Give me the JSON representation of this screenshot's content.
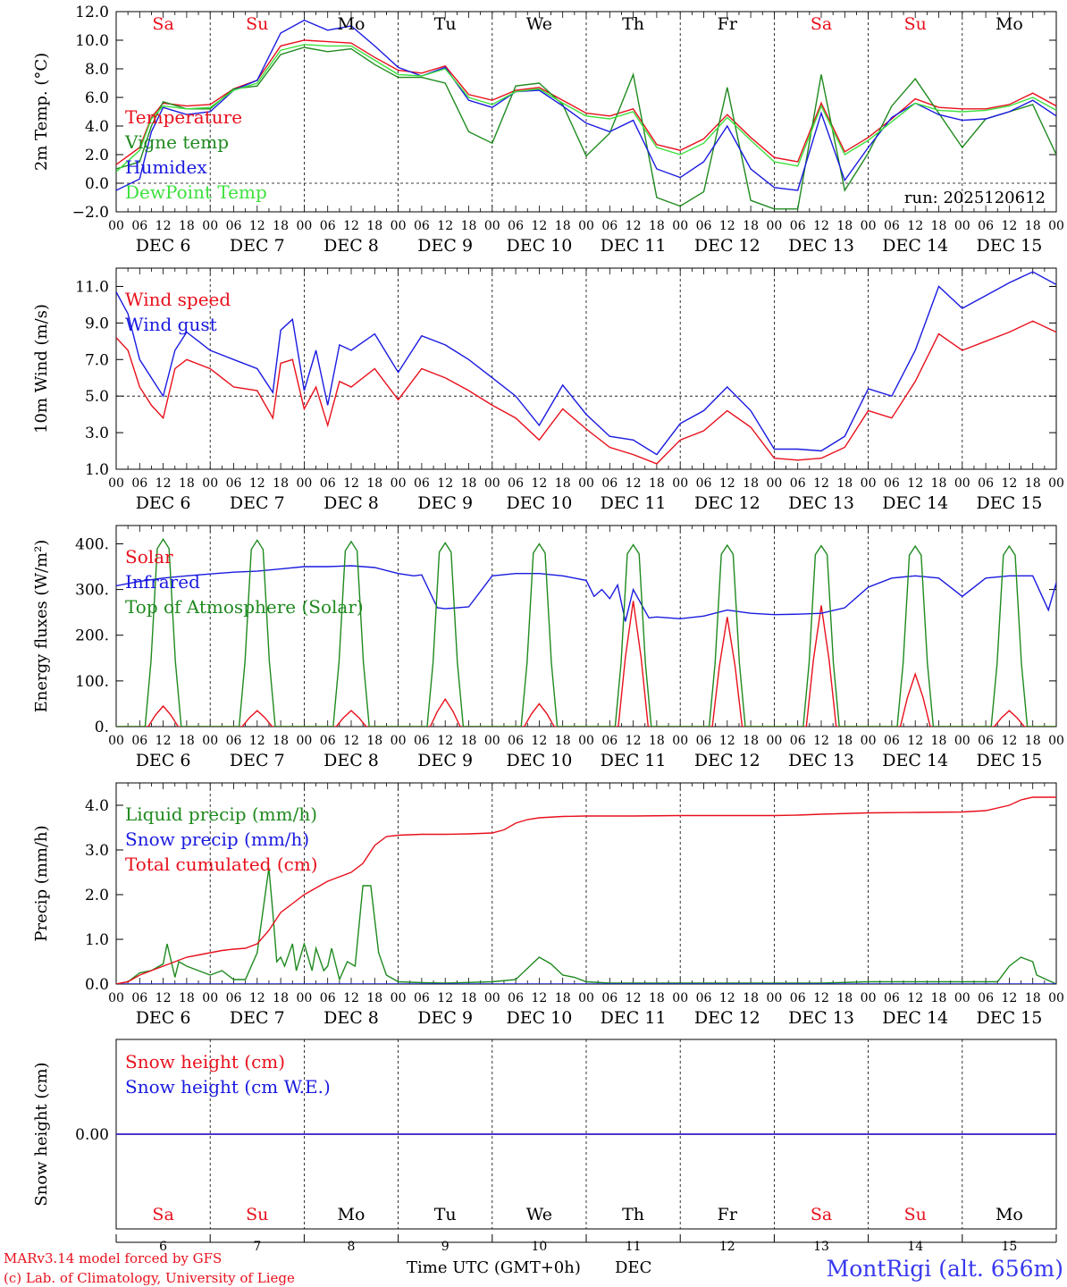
{
  "footer": {
    "credit1": "MARv3.14 model forced by GFS",
    "credit2": "(c) Lab. of Climatology, University of Liege",
    "xlabel": "Time UTC (GMT+0h)",
    "month": "DEC",
    "station": "MontRigi (alt. 656m)"
  },
  "colors": {
    "red": "#e8101c",
    "blue": "#1a1ae0",
    "green": "#1f8a1f",
    "lightgreen": "#3de03d",
    "weekend": "#e8101c",
    "weekday": "#000000"
  },
  "days": {
    "labels": [
      "Sa",
      "Su",
      "Mo",
      "Tu",
      "We",
      "Th",
      "Fr",
      "Sa",
      "Su",
      "Mo"
    ],
    "weekend": [
      true,
      true,
      false,
      false,
      false,
      false,
      false,
      true,
      true,
      false
    ],
    "dates": [
      "DEC  6",
      "DEC  7",
      "DEC  8",
      "DEC  9",
      "DEC 10",
      "DEC 11",
      "DEC 12",
      "DEC 13",
      "DEC 14",
      "DEC 15"
    ],
    "nums": [
      "6",
      "7",
      "8",
      "9",
      "10",
      "11",
      "12",
      "13",
      "14",
      "15"
    ],
    "hour_ticks": [
      "00",
      "06",
      "12",
      "18"
    ]
  },
  "chart_data": [
    {
      "type": "line",
      "panel": "temperature",
      "ylabel": "2m Temp. (°C)",
      "ylim": [
        -2,
        12
      ],
      "yticks": [
        "−2.0",
        "0.0",
        "2.0",
        "4.0",
        "6.0",
        "8.0",
        "10.0",
        "12.0"
      ],
      "refline": 0,
      "annotation": "run: 2025120612",
      "x_unit": "hours since 2025-12-06 00 UTC",
      "series": [
        {
          "name": "Temperature",
          "color": "red",
          "x": [
            0,
            6,
            9,
            12,
            18,
            24,
            30,
            36,
            42,
            48,
            54,
            60,
            66,
            72,
            78,
            84,
            90,
            96,
            102,
            108,
            114,
            120,
            126,
            132,
            138,
            144,
            150,
            156,
            162,
            168,
            174,
            180,
            186,
            192,
            198,
            204,
            210,
            216,
            222,
            228,
            234,
            240
          ],
          "values": [
            1.3,
            2.5,
            4.6,
            5.6,
            5.4,
            5.5,
            6.6,
            7.2,
            9.6,
            10.0,
            9.9,
            9.8,
            8.8,
            7.9,
            7.7,
            8.2,
            6.2,
            5.8,
            6.5,
            6.7,
            5.8,
            4.9,
            4.7,
            5.2,
            2.7,
            2.3,
            3.1,
            4.8,
            3.2,
            1.8,
            1.5,
            5.6,
            2.2,
            3.2,
            4.5,
            5.9,
            5.3,
            5.2,
            5.2,
            5.5,
            6.3,
            5.4
          ]
        },
        {
          "name": "Vigne temp",
          "color": "green",
          "x": [
            0,
            6,
            9,
            12,
            18,
            24,
            30,
            36,
            42,
            48,
            54,
            60,
            66,
            72,
            78,
            84,
            90,
            96,
            102,
            108,
            114,
            120,
            126,
            132,
            138,
            144,
            150,
            156,
            162,
            168,
            174,
            180,
            186,
            192,
            198,
            204,
            210,
            216,
            222,
            228,
            234,
            240
          ],
          "values": [
            1.0,
            1.5,
            4.0,
            5.7,
            5.2,
            5.2,
            6.6,
            6.8,
            9.0,
            9.5,
            9.2,
            9.4,
            8.3,
            7.4,
            7.4,
            7.0,
            3.6,
            2.8,
            6.8,
            7.0,
            5.5,
            1.9,
            3.5,
            7.6,
            -1.0,
            -1.6,
            -0.6,
            6.7,
            -1.2,
            -1.8,
            -1.8,
            7.6,
            -0.5,
            2.1,
            5.4,
            7.3,
            4.9,
            2.5,
            4.5,
            5.0,
            5.5,
            2.0
          ]
        },
        {
          "name": "Humidex",
          "color": "blue",
          "x": [
            0,
            6,
            9,
            12,
            18,
            24,
            30,
            36,
            42,
            48,
            54,
            60,
            66,
            72,
            78,
            84,
            90,
            96,
            102,
            108,
            114,
            120,
            126,
            132,
            138,
            144,
            150,
            156,
            162,
            168,
            174,
            180,
            186,
            192,
            198,
            204,
            210,
            216,
            222,
            228,
            234,
            240
          ],
          "values": [
            -0.5,
            0.3,
            3.6,
            5.3,
            4.8,
            5.0,
            6.5,
            7.2,
            10.5,
            11.4,
            10.7,
            11.0,
            9.6,
            8.1,
            7.5,
            8.1,
            5.8,
            5.3,
            6.4,
            6.5,
            5.4,
            4.2,
            3.6,
            4.4,
            1.0,
            0.4,
            1.5,
            4.0,
            1.0,
            -0.3,
            -0.5,
            4.9,
            0.2,
            2.5,
            4.6,
            5.6,
            4.8,
            4.4,
            4.5,
            5.0,
            5.8,
            4.7
          ]
        },
        {
          "name": "DewPoint Temp",
          "color": "lightgreen",
          "x": [
            0,
            6,
            9,
            12,
            18,
            24,
            30,
            36,
            42,
            48,
            54,
            60,
            66,
            72,
            78,
            84,
            90,
            96,
            102,
            108,
            114,
            120,
            126,
            132,
            138,
            144,
            150,
            156,
            162,
            168,
            174,
            180,
            186,
            192,
            198,
            204,
            210,
            216,
            222,
            228,
            234,
            240
          ],
          "values": [
            0.8,
            2.3,
            4.5,
            5.4,
            5.2,
            5.3,
            6.5,
            7.0,
            9.3,
            9.7,
            9.6,
            9.6,
            8.6,
            7.6,
            7.5,
            8.0,
            6.0,
            5.5,
            6.4,
            6.6,
            5.6,
            4.7,
            4.5,
            5.0,
            2.5,
            2.0,
            2.8,
            4.6,
            3.0,
            1.5,
            1.2,
            5.4,
            2.0,
            3.0,
            4.3,
            5.6,
            5.1,
            5.0,
            5.1,
            5.4,
            6.0,
            5.1
          ]
        }
      ]
    },
    {
      "type": "line",
      "panel": "wind",
      "ylabel": "10m Wind (m/s)",
      "ylim": [
        1,
        12
      ],
      "yticks": [
        "1.0",
        "3.0",
        "5.0",
        "7.0",
        "9.0",
        "11.0"
      ],
      "refline": 5,
      "series": [
        {
          "name": "Wind speed",
          "color": "red",
          "x": [
            0,
            3,
            6,
            9,
            12,
            15,
            18,
            24,
            30,
            36,
            40,
            42,
            45,
            48,
            51,
            54,
            57,
            60,
            66,
            72,
            78,
            84,
            90,
            96,
            102,
            108,
            114,
            120,
            126,
            132,
            138,
            144,
            150,
            156,
            162,
            168,
            174,
            180,
            186,
            192,
            198,
            204,
            210,
            216,
            222,
            228,
            234,
            240
          ],
          "values": [
            8.2,
            7.5,
            5.5,
            4.5,
            3.8,
            6.5,
            7.0,
            6.5,
            5.5,
            5.3,
            3.8,
            6.8,
            7.0,
            4.3,
            5.5,
            3.4,
            5.8,
            5.5,
            6.5,
            4.8,
            6.5,
            6.0,
            5.3,
            4.5,
            3.8,
            2.6,
            4.3,
            3.2,
            2.2,
            1.8,
            1.3,
            2.6,
            3.1,
            4.2,
            3.3,
            1.6,
            1.5,
            1.6,
            2.2,
            4.2,
            3.8,
            5.8,
            8.4,
            7.5,
            8.0,
            8.5,
            9.1,
            8.5
          ]
        },
        {
          "name": "Wind gust",
          "color": "blue",
          "x": [
            0,
            3,
            6,
            9,
            12,
            15,
            18,
            24,
            30,
            36,
            40,
            42,
            45,
            48,
            51,
            54,
            57,
            60,
            66,
            72,
            78,
            84,
            90,
            96,
            102,
            108,
            114,
            120,
            126,
            132,
            138,
            144,
            150,
            156,
            162,
            168,
            174,
            180,
            186,
            192,
            198,
            204,
            210,
            216,
            222,
            228,
            234,
            240
          ],
          "values": [
            10.7,
            9.5,
            7.0,
            6.0,
            5.0,
            7.5,
            8.5,
            7.5,
            7.0,
            6.5,
            5.2,
            8.6,
            9.2,
            5.3,
            7.5,
            4.5,
            7.8,
            7.5,
            8.4,
            6.3,
            8.3,
            7.8,
            7.0,
            6.0,
            5.0,
            3.4,
            5.6,
            4.0,
            2.8,
            2.6,
            1.8,
            3.5,
            4.2,
            5.5,
            4.2,
            2.1,
            2.1,
            2.0,
            2.8,
            5.4,
            5.0,
            7.5,
            11.0,
            9.8,
            10.5,
            11.2,
            11.8,
            11.1
          ]
        }
      ]
    },
    {
      "type": "line",
      "panel": "energy",
      "ylabel": "Energy fluxes (W/m²)",
      "ylim": [
        0,
        440
      ],
      "yticks": [
        "0.",
        "100.",
        "200.",
        "300.",
        "400."
      ],
      "series": [
        {
          "name": "Solar",
          "color": "red",
          "peaks_hour_offset": 12,
          "peak_values": [
            45,
            35,
            35,
            60,
            50,
            275,
            240,
            265,
            115,
            35
          ]
        },
        {
          "name": "Infrared",
          "color": "blue",
          "x": [
            0,
            6,
            12,
            18,
            24,
            30,
            36,
            42,
            48,
            54,
            60,
            66,
            72,
            76,
            78,
            82,
            84,
            90,
            96,
            102,
            108,
            114,
            120,
            122,
            124,
            126,
            128,
            130,
            132,
            136,
            138,
            144,
            150,
            156,
            162,
            168,
            174,
            180,
            186,
            192,
            198,
            204,
            210,
            216,
            222,
            228,
            234,
            238,
            240
          ],
          "values": [
            308,
            318,
            325,
            330,
            334,
            338,
            340,
            345,
            350,
            350,
            352,
            348,
            335,
            330,
            332,
            260,
            258,
            262,
            330,
            335,
            335,
            330,
            320,
            285,
            300,
            280,
            310,
            230,
            300,
            238,
            240,
            236,
            242,
            255,
            248,
            245,
            246,
            248,
            260,
            305,
            325,
            330,
            325,
            285,
            325,
            330,
            330,
            255,
            315
          ]
        },
        {
          "name": "Top of Atmosphere (Solar)",
          "color": "green",
          "peaks_hour_offset": 12,
          "peak_values": [
            410,
            408,
            405,
            402,
            400,
            398,
            397,
            396,
            395,
            395
          ]
        }
      ]
    },
    {
      "type": "line",
      "panel": "precip",
      "ylabel": "Precip (mm/h)",
      "ylim": [
        0,
        4.5
      ],
      "yticks": [
        "0.0",
        "1.0",
        "2.0",
        "3.0",
        "4.0"
      ],
      "series": [
        {
          "name": "Liquid precip (mm/h)",
          "color": "green",
          "x": [
            0,
            3,
            6,
            9,
            12,
            13,
            15,
            16,
            18,
            21,
            24,
            27,
            30,
            33,
            36,
            39,
            40,
            41,
            42,
            43,
            45,
            46,
            48,
            49,
            50,
            51,
            53,
            54,
            55,
            57,
            59,
            61,
            63,
            65,
            67,
            69,
            72,
            78,
            84,
            96,
            102,
            108,
            111,
            114,
            117,
            120,
            126,
            180,
            192,
            204,
            225,
            228,
            231,
            234,
            235,
            240
          ],
          "values": [
            0,
            0.05,
            0.25,
            0.3,
            0.45,
            0.9,
            0.15,
            0.5,
            0.4,
            0.3,
            0.2,
            0.3,
            0.1,
            0.1,
            0.7,
            2.6,
            1.6,
            0.5,
            0.6,
            0.4,
            0.9,
            0.3,
            0.9,
            0.6,
            0.3,
            0.8,
            0.3,
            0.4,
            0.8,
            0.1,
            0.5,
            0.4,
            2.2,
            2.2,
            0.7,
            0.2,
            0.05,
            0.03,
            0.02,
            0.05,
            0.1,
            0.6,
            0.45,
            0.2,
            0.15,
            0.05,
            0.02,
            0.02,
            0.05,
            0.05,
            0.05,
            0.4,
            0.6,
            0.5,
            0.2,
            0
          ]
        },
        {
          "name": "Snow precip (mm/h)",
          "color": "blue",
          "x": [
            0,
            240
          ],
          "values": [
            0,
            0
          ]
        },
        {
          "name": "Total cumulated (cm)",
          "color": "red",
          "x": [
            0,
            3,
            6,
            9,
            12,
            15,
            18,
            21,
            24,
            27,
            30,
            33,
            36,
            39,
            42,
            45,
            48,
            51,
            54,
            57,
            60,
            63,
            66,
            69,
            72,
            78,
            84,
            90,
            96,
            99,
            102,
            105,
            108,
            114,
            120,
            126,
            132,
            144,
            156,
            168,
            174,
            180,
            192,
            204,
            216,
            222,
            228,
            231,
            234,
            240
          ],
          "values": [
            0,
            0.05,
            0.2,
            0.3,
            0.4,
            0.5,
            0.6,
            0.65,
            0.7,
            0.75,
            0.78,
            0.8,
            0.9,
            1.2,
            1.6,
            1.8,
            2.0,
            2.15,
            2.3,
            2.4,
            2.5,
            2.7,
            3.1,
            3.3,
            3.33,
            3.35,
            3.35,
            3.36,
            3.38,
            3.45,
            3.6,
            3.68,
            3.72,
            3.75,
            3.76,
            3.76,
            3.76,
            3.77,
            3.77,
            3.77,
            3.78,
            3.8,
            3.83,
            3.84,
            3.85,
            3.88,
            4.0,
            4.12,
            4.18,
            4.18
          ]
        }
      ]
    },
    {
      "type": "line",
      "panel": "snow",
      "ylabel": "Snow height (cm)",
      "yticks": [
        "0.00"
      ],
      "series": [
        {
          "name": "Snow height (cm)",
          "color": "red",
          "x": [
            0,
            240
          ],
          "values": [
            0,
            0
          ]
        },
        {
          "name": "Snow height (cm W.E.)",
          "color": "blue",
          "x": [
            0,
            240
          ],
          "values": [
            0,
            0
          ]
        }
      ]
    }
  ]
}
